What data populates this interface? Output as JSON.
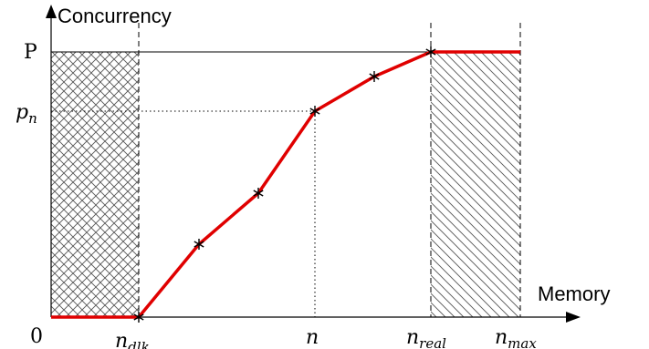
{
  "labels": {
    "y_axis": "Concurrency",
    "x_axis": "Memory",
    "origin": "0",
    "p_max": "P",
    "p_n_base": "p",
    "p_n_sub": "n",
    "n_dlk_base": "n",
    "n_dlk_sub": "dlk",
    "n": "n",
    "n_real_base": "n",
    "n_real_sub": "real",
    "n_max_base": "n",
    "n_max_sub": "max"
  },
  "colors": {
    "curve": "#e00000",
    "axes": "#000000",
    "hatch": "#555555"
  },
  "regions": {
    "left": "cross-hatched",
    "right": "diagonal-hatched"
  },
  "icons": {
    "marker": "asterisk-icon",
    "axis_arrow": "arrow-head-icon"
  }
}
